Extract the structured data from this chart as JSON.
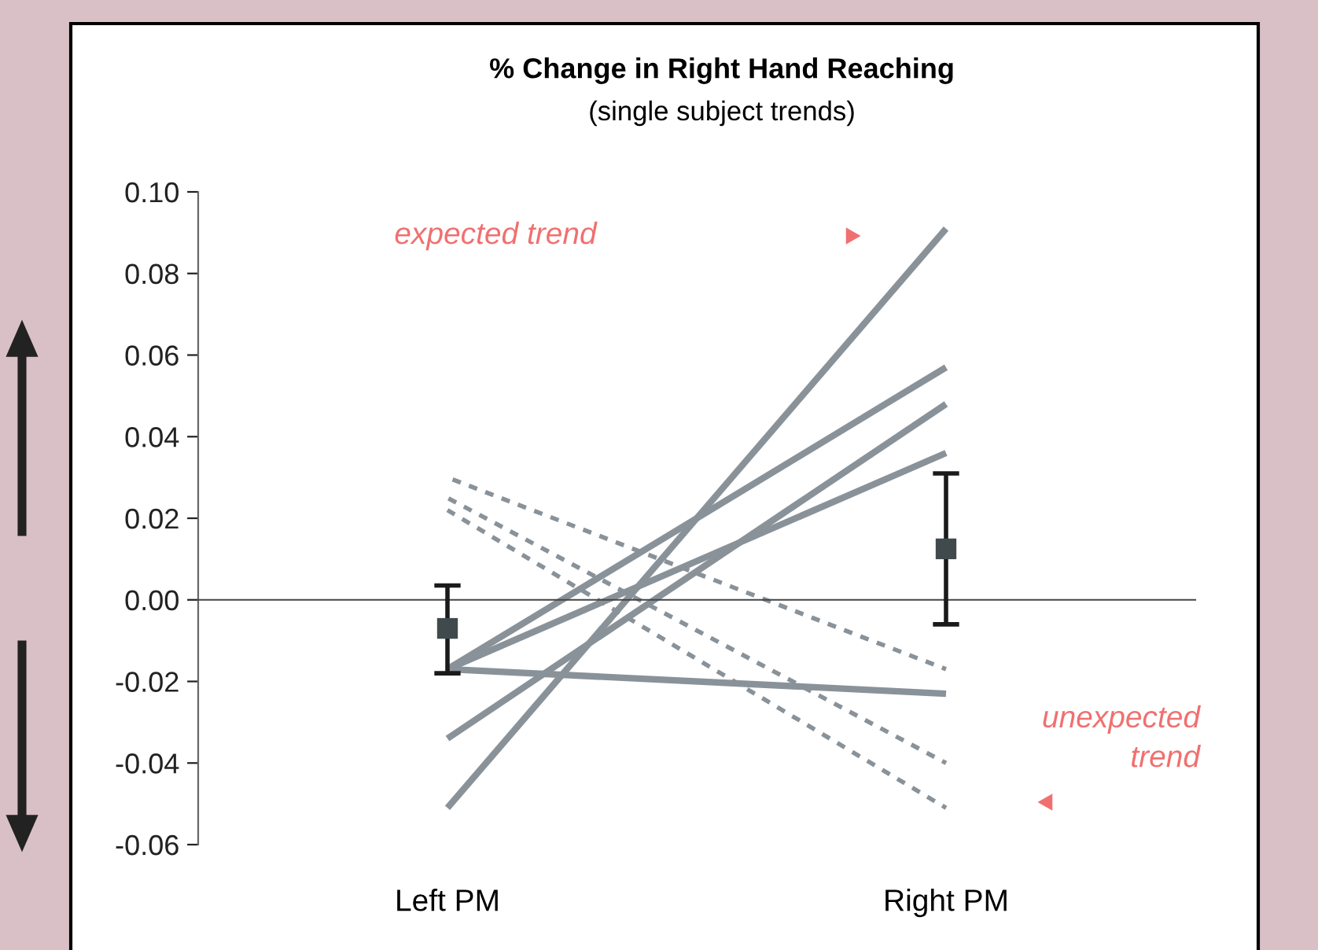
{
  "chart_data": {
    "type": "line",
    "title": "% Change in Right Hand Reaching",
    "subtitle": "(single subject trends)",
    "categories": [
      "Left PM",
      "Right PM"
    ],
    "series": [
      {
        "color": "#8a9299",
        "values": [
          -0.051,
          0.091
        ]
      },
      {
        "color": "#8a9299",
        "values": [
          -0.034,
          0.048
        ]
      },
      {
        "color": "#8a9299",
        "values": [
          -0.017,
          0.057
        ]
      },
      {
        "color": "#8a9299",
        "values": [
          -0.017,
          0.036
        ]
      },
      {
        "color": "#8a9299",
        "values": [
          -0.017,
          -0.023
        ]
      },
      {
        "color": "#8a9299",
        "values": [
          0.03,
          -0.017
        ],
        "line_style": "dashed"
      },
      {
        "color": "#8a9299",
        "values": [
          0.025,
          -0.04
        ],
        "line_style": "dashed"
      },
      {
        "color": "#8a9299",
        "values": [
          0.022,
          -0.051
        ],
        "line_style": "dashed"
      },
      {
        "type": "scatter",
        "color": "#404a4c",
        "marker": "square",
        "values": [
          -0.007,
          0.0125
        ],
        "errors": [
          [
            -0.018,
            0.0035
          ],
          [
            -0.006,
            0.031
          ]
        ]
      }
    ],
    "ylim": [
      -0.06,
      0.1
    ],
    "yticks": [
      {
        "value": -0.06,
        "label": "-0.06"
      },
      {
        "value": -0.04,
        "label": "-0.04"
      },
      {
        "value": -0.02,
        "label": "-0.02"
      },
      {
        "value": 0,
        "label": "0.00"
      },
      {
        "value": 0.02,
        "label": "0.02"
      },
      {
        "value": 0.04,
        "label": "0.04"
      },
      {
        "value": 0.06,
        "label": "0.06"
      },
      {
        "value": 0.08,
        "label": "0.08"
      },
      {
        "value": 0.1,
        "label": "0.10"
      }
    ],
    "annotations": [
      "expected trend",
      "unexpected\ntrend"
    ]
  }
}
